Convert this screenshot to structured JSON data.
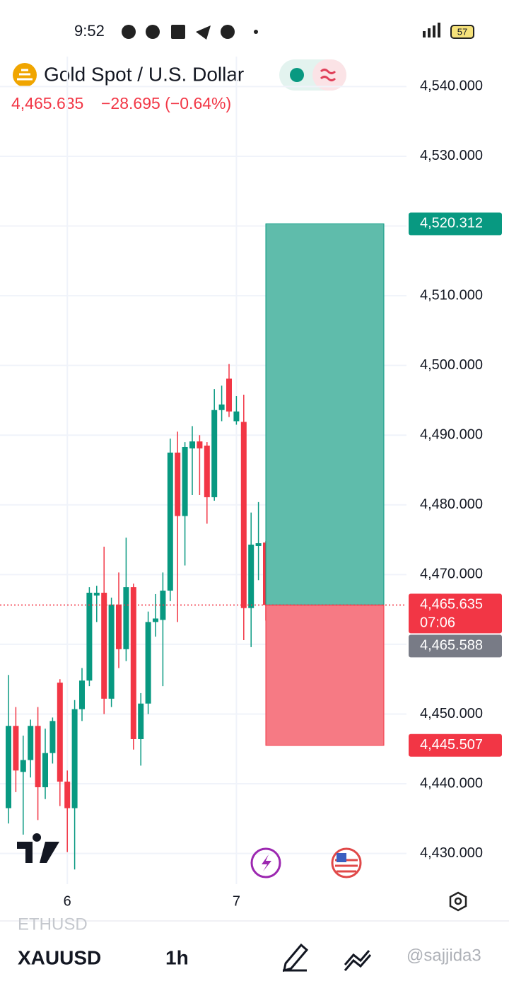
{
  "status": {
    "time": "9:52",
    "battery": "57"
  },
  "chart_data": {
    "type": "candlestick",
    "title": "Gold Spot / U.S. Dollar",
    "last_price": "4,465.635",
    "change": "−28.695 (−0.64%)",
    "categories": [
      null,
      null,
      null,
      null,
      null,
      null,
      null,
      null,
      "6",
      null,
      null,
      null,
      null,
      null,
      null,
      null,
      null,
      null,
      null,
      null,
      null,
      null,
      null,
      null,
      null,
      null,
      null,
      null,
      null,
      null,
      null,
      "7",
      null,
      null,
      null,
      null
    ],
    "open": [
      4436.5,
      4448.3,
      4441.7,
      4443.4,
      4448.3,
      4439.5,
      4444.4,
      4454.5,
      4440.3,
      4436.5,
      4450.7,
      4454.8,
      4467.0,
      4467.4,
      4452.2,
      4465.7,
      4459.3,
      4468.2,
      4446.4,
      4451.5,
      4463.2,
      4463.5,
      4467.7,
      4487.5,
      4478.4,
      4488.1,
      4489.1,
      4488.5,
      4481.1,
      4493.6,
      4498.1,
      4492.0,
      4491.9,
      4465.2,
      4474.1,
      4474.6
    ],
    "high": [
      4455.6,
      4451.0,
      4446.9,
      4449.2,
      4451.0,
      4447.9,
      4449.5,
      4455.0,
      4441.9,
      4452.0,
      4456.6,
      4468.2,
      4468.4,
      4474.0,
      4466.7,
      4470.3,
      4475.3,
      4468.7,
      4453.0,
      4464.7,
      4467.2,
      4470.3,
      4489.5,
      4490.5,
      4489.0,
      4491.3,
      4490.0,
      4489.0,
      4496.6,
      4497.1,
      4500.2,
      4495.6,
      4495.8,
      4478.9,
      4480.4,
      4474.8
    ],
    "low": [
      4434.3,
      4438.8,
      4432.7,
      4440.9,
      4434.8,
      4437.8,
      4442.9,
      4436.8,
      4430.2,
      4427.7,
      4449.0,
      4454.0,
      4463.2,
      4450.0,
      4451.0,
      4456.6,
      4457.6,
      4444.9,
      4442.6,
      4450.0,
      4461.1,
      4454.0,
      4466.2,
      4463.2,
      4471.3,
      4481.4,
      4481.4,
      4477.3,
      4480.6,
      4492.0,
      4492.6,
      4491.5,
      4460.6,
      4459.6,
      4469.2,
      4463.4
    ],
    "close": [
      4448.3,
      4441.9,
      4443.4,
      4448.3,
      4439.5,
      4444.4,
      4449.0,
      4440.3,
      4436.5,
      4450.7,
      4454.8,
      4467.4,
      4467.4,
      4452.2,
      4465.7,
      4459.3,
      4468.2,
      4446.4,
      4451.5,
      4463.2,
      4463.7,
      4467.7,
      4487.5,
      4478.4,
      4488.3,
      4489.1,
      4488.1,
      4481.1,
      4493.6,
      4494.4,
      4493.4,
      4493.4,
      4465.2,
      4474.3,
      4474.5,
      4465.635
    ],
    "up_color": "#089981",
    "down_color": "#f23645",
    "ylim": [
      4425.6,
      4544.3
    ],
    "yticks": [
      {
        "value": 4430,
        "label": "4,430.000"
      },
      {
        "value": 4440,
        "label": "4,440.000"
      },
      {
        "value": 4450,
        "label": "4,450.000"
      },
      {
        "value": 4460,
        "label": "4,460.000"
      },
      {
        "value": 4470,
        "label": "4,470.000"
      },
      {
        "value": 4480,
        "label": "4,480.000"
      },
      {
        "value": 4490,
        "label": "4,490.000"
      },
      {
        "value": 4500,
        "label": "4,500.000"
      },
      {
        "value": 4510,
        "label": "4,510.000"
      },
      {
        "value": 4520,
        "label": "4,520.000"
      },
      {
        "value": 4530,
        "label": "4,530.000"
      },
      {
        "value": 4540,
        "label": "4,540.000"
      }
    ],
    "grid": true,
    "position": {
      "target": 4520.312,
      "entry": 4465.635,
      "stop": 4445.507,
      "profit_color": "#5fbcab",
      "loss_color": "#f67a84"
    },
    "price_labels": [
      {
        "value": 4520.312,
        "label": "4,520.312",
        "color": "#089981"
      },
      {
        "value": 4465.635,
        "label": "4,465.635",
        "sub": "07:06",
        "color": "#f23645"
      },
      {
        "value": 4465.588,
        "label": "4,465.588",
        "color": "#787b86"
      },
      {
        "value": 4445.507,
        "label": "4,445.507",
        "color": "#f23645"
      }
    ]
  },
  "toolbar": {
    "symbol_prev": "ETHUSD",
    "symbol": "XAUUSD",
    "interval": "1h",
    "watermark": "@sajjida3"
  }
}
